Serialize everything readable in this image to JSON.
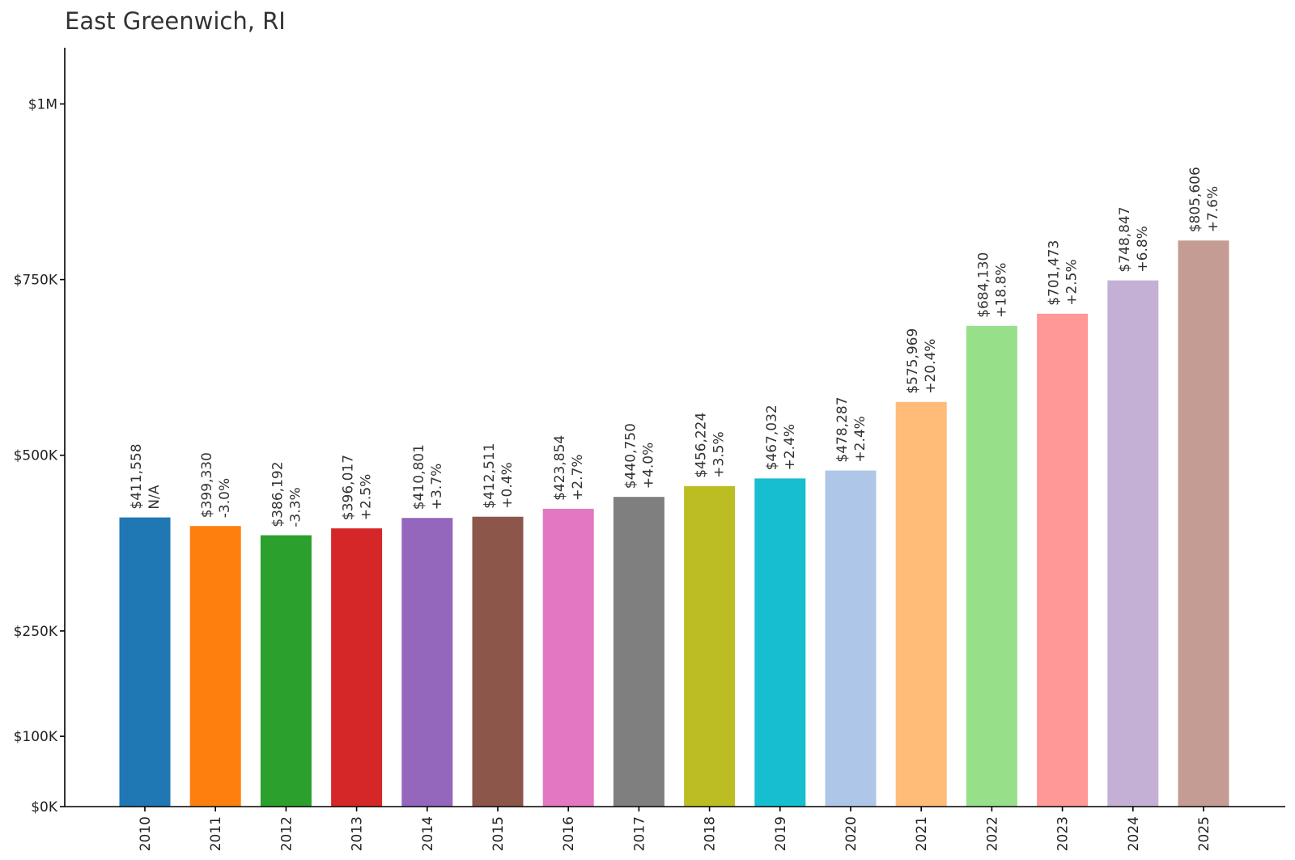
{
  "chart_data": {
    "type": "bar",
    "title": "East Greenwich, RI",
    "xlabel": "",
    "ylabel": "",
    "ylim": [
      0,
      1080000
    ],
    "grid": false,
    "legend": "none",
    "y_ticks": [
      {
        "value": 0,
        "label": "$0K"
      },
      {
        "value": 100000,
        "label": "$100K"
      },
      {
        "value": 250000,
        "label": "$250K"
      },
      {
        "value": 500000,
        "label": "$500K"
      },
      {
        "value": 750000,
        "label": "$750K"
      },
      {
        "value": 1000000,
        "label": "$1M"
      }
    ],
    "categories": [
      "2010",
      "2011",
      "2012",
      "2013",
      "2014",
      "2015",
      "2016",
      "2017",
      "2018",
      "2019",
      "2020",
      "2021",
      "2022",
      "2023",
      "2024",
      "2025"
    ],
    "values": [
      411558,
      399330,
      386192,
      396017,
      410801,
      412511,
      423854,
      440750,
      456224,
      467032,
      478287,
      575969,
      684130,
      701473,
      748847,
      805606
    ],
    "value_labels": [
      "$411,558",
      "$399,330",
      "$386,192",
      "$396,017",
      "$410,801",
      "$412,511",
      "$423,854",
      "$440,750",
      "$456,224",
      "$467,032",
      "$478,287",
      "$575,969",
      "$684,130",
      "$701,473",
      "$748,847",
      "$805,606"
    ],
    "change_labels": [
      "N/A",
      "-3.0%",
      "-3.3%",
      "+2.5%",
      "+3.7%",
      "+0.4%",
      "+2.7%",
      "+4.0%",
      "+3.5%",
      "+2.4%",
      "+2.4%",
      "+20.4%",
      "+18.8%",
      "+2.5%",
      "+6.8%",
      "+7.6%"
    ],
    "colors": [
      "#1f77b4",
      "#ff7f0e",
      "#2ca02c",
      "#d62728",
      "#9467bd",
      "#8c564b",
      "#e377c2",
      "#7f7f7f",
      "#bcbd22",
      "#17becf",
      "#aec7e8",
      "#ffbb78",
      "#98df8a",
      "#ff9896",
      "#c5b0d5",
      "#c49c94"
    ]
  }
}
